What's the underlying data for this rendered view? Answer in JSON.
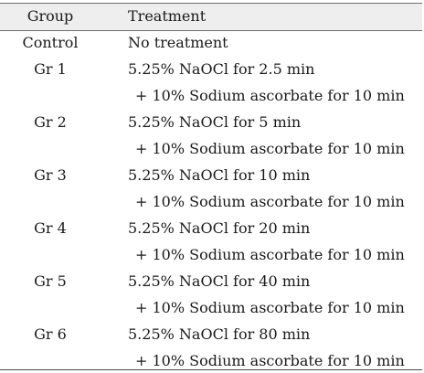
{
  "table": {
    "headers": {
      "group": "Group",
      "treatment": "Treatment"
    },
    "rows": [
      {
        "group": "Control",
        "line1": "No treatment",
        "line2": ""
      },
      {
        "group": "Gr 1",
        "line1": "5.25% NaOCl for 2.5 min",
        "line2": "+ 10% Sodium ascorbate for 10 min"
      },
      {
        "group": "Gr 2",
        "line1": "5.25% NaOCl for 5 min",
        "line2": "+ 10% Sodium ascorbate for 10 min"
      },
      {
        "group": "Gr 3",
        "line1": "5.25% NaOCl for 10 min",
        "line2": "+ 10% Sodium ascorbate for 10 min"
      },
      {
        "group": "Gr 4",
        "line1": "5.25% NaOCl for 20 min",
        "line2": "+ 10% Sodium ascorbate for 10 min"
      },
      {
        "group": "Gr 5",
        "line1": "5.25% NaOCl for 40 min",
        "line2": "+ 10% Sodium ascorbate for 10 min"
      },
      {
        "group": "Gr 6",
        "line1": "5.25% NaOCl for 80 min",
        "line2": "+ 10% Sodium ascorbate for 10 min"
      }
    ]
  }
}
